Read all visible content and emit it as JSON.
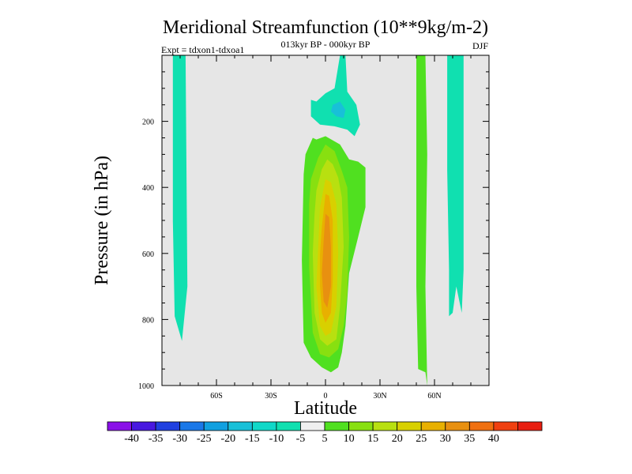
{
  "chart_data": {
    "type": "contour",
    "title": "Meridional Streamfunction (10**9kg/m-2)",
    "subtitle_center": "013kyr BP - 000kyr BP",
    "subtitle_left": "Expt = tdxon1-tdxoa1",
    "subtitle_right": "DJF",
    "xlabel": "Latitude",
    "ylabel": "Pressure (in hPa)",
    "x_ticks": [
      {
        "value": -60,
        "label": "60S"
      },
      {
        "value": -30,
        "label": "30S"
      },
      {
        "value": 0,
        "label": "0"
      },
      {
        "value": 30,
        "label": "30N"
      },
      {
        "value": 60,
        "label": "60N"
      }
    ],
    "y_ticks": [
      {
        "value": 200,
        "label": "200"
      },
      {
        "value": 400,
        "label": "400"
      },
      {
        "value": 600,
        "label": "600"
      },
      {
        "value": 800,
        "label": "800"
      },
      {
        "value": 1000,
        "label": "1000"
      }
    ],
    "xlim": [
      -90,
      90
    ],
    "ylim": [
      1000,
      0
    ],
    "background": "#e6e6e6",
    "colorbar": {
      "colors": [
        "#8a10e8",
        "#4818e0",
        "#2040e0",
        "#1a78e8",
        "#10a0e0",
        "#18c0d8",
        "#10d8c8",
        "#10e0b0",
        "#f0f0f0",
        "#50e020",
        "#88e010",
        "#b8e010",
        "#d8d000",
        "#e8b000",
        "#e89010",
        "#f07010",
        "#f04010",
        "#e81e10"
      ],
      "labels": [
        "-40",
        "-35",
        "-30",
        "-25",
        "-20",
        "-15",
        "-10",
        "-5",
        "5",
        "10",
        "15",
        "20",
        "25",
        "30",
        "35",
        "40"
      ]
    },
    "regions": [
      {
        "level": -5,
        "color": "#10e0b0",
        "points": [
          [
            -84,
            0
          ],
          [
            -77,
            0
          ],
          [
            -76,
            700
          ],
          [
            -79,
            865
          ],
          [
            -83,
            790
          ],
          [
            -84,
            500
          ]
        ]
      },
      {
        "level": -5,
        "color": "#10e0b0",
        "points": [
          [
            -5,
            140
          ],
          [
            0,
            115
          ],
          [
            5,
            100
          ],
          [
            8,
            0
          ],
          [
            11,
            0
          ],
          [
            12,
            110
          ],
          [
            17,
            150
          ],
          [
            19,
            210
          ],
          [
            16,
            245
          ],
          [
            12,
            225
          ],
          [
            5,
            215
          ],
          [
            -3,
            210
          ],
          [
            -8,
            185
          ],
          [
            -8,
            135
          ]
        ]
      },
      {
        "level": -10,
        "color": "#18c0d8",
        "points": [
          [
            4,
            150
          ],
          [
            8,
            140
          ],
          [
            11,
            165
          ],
          [
            10,
            190
          ],
          [
            6,
            185
          ],
          [
            3,
            170
          ]
        ]
      },
      {
        "level": 5,
        "color": "#50e020",
        "points": [
          [
            -11,
            300
          ],
          [
            -7,
            250
          ],
          [
            -5,
            255
          ],
          [
            0,
            245
          ],
          [
            8,
            270
          ],
          [
            13,
            315
          ],
          [
            18,
            322
          ],
          [
            22,
            340
          ],
          [
            22,
            460
          ],
          [
            18,
            550
          ],
          [
            13,
            660
          ],
          [
            11,
            820
          ],
          [
            9,
            900
          ],
          [
            7,
            945
          ],
          [
            3,
            960
          ],
          [
            -2,
            945
          ],
          [
            -8,
            915
          ],
          [
            -12,
            870
          ],
          [
            -13,
            620
          ],
          [
            -12,
            360
          ]
        ]
      },
      {
        "level": 5,
        "color": "#50e020",
        "points": [
          [
            50,
            0
          ],
          [
            55,
            0
          ],
          [
            56,
            300
          ],
          [
            55,
            700
          ],
          [
            56,
            1000
          ],
          [
            55,
            960
          ],
          [
            51,
            950
          ],
          [
            50,
            700
          ]
        ]
      },
      {
        "level": -5,
        "color": "#10e0b0",
        "points": [
          [
            67,
            0
          ],
          [
            76,
            0
          ],
          [
            76,
            650
          ],
          [
            75,
            780
          ],
          [
            72,
            700
          ],
          [
            70,
            780
          ],
          [
            68,
            790
          ],
          [
            68,
            650
          ],
          [
            67,
            350
          ]
        ]
      },
      {
        "level": 10,
        "color": "#88e010",
        "points": [
          [
            -8,
            375
          ],
          [
            -4,
            310
          ],
          [
            0,
            270
          ],
          [
            5,
            290
          ],
          [
            9,
            350
          ],
          [
            12,
            400
          ],
          [
            13,
            550
          ],
          [
            12,
            720
          ],
          [
            10,
            820
          ],
          [
            7,
            890
          ],
          [
            2,
            915
          ],
          [
            -3,
            905
          ],
          [
            -7,
            840
          ],
          [
            -9,
            640
          ],
          [
            -9,
            450
          ]
        ]
      },
      {
        "level": 15,
        "color": "#b8e010",
        "points": [
          [
            -5,
            410
          ],
          [
            -2,
            345
          ],
          [
            1,
            315
          ],
          [
            4,
            330
          ],
          [
            7,
            370
          ],
          [
            9,
            430
          ],
          [
            10,
            580
          ],
          [
            8,
            760
          ],
          [
            6,
            860
          ],
          [
            1,
            880
          ],
          [
            -3,
            860
          ],
          [
            -6,
            780
          ],
          [
            -7,
            600
          ],
          [
            -6,
            480
          ]
        ]
      },
      {
        "level": 20,
        "color": "#d8d000",
        "points": [
          [
            -3,
            460
          ],
          [
            0,
            375
          ],
          [
            3,
            385
          ],
          [
            6,
            450
          ],
          [
            7,
            600
          ],
          [
            6,
            760
          ],
          [
            3,
            840
          ],
          [
            0,
            850
          ],
          [
            -3,
            820
          ],
          [
            -5,
            700
          ],
          [
            -4,
            580
          ]
        ]
      },
      {
        "level": 25,
        "color": "#e8b000",
        "points": [
          [
            -2,
            520
          ],
          [
            0,
            420
          ],
          [
            2,
            425
          ],
          [
            4,
            500
          ],
          [
            4,
            680
          ],
          [
            3,
            780
          ],
          [
            0,
            810
          ],
          [
            -2,
            780
          ],
          [
            -3,
            700
          ],
          [
            -3,
            600
          ]
        ]
      },
      {
        "level": 30,
        "color": "#e89010",
        "points": [
          [
            -1,
            560
          ],
          [
            0,
            480
          ],
          [
            2,
            490
          ],
          [
            3,
            580
          ],
          [
            3,
            700
          ],
          [
            1,
            765
          ],
          [
            -1,
            745
          ],
          [
            -2,
            660
          ]
        ]
      }
    ]
  }
}
